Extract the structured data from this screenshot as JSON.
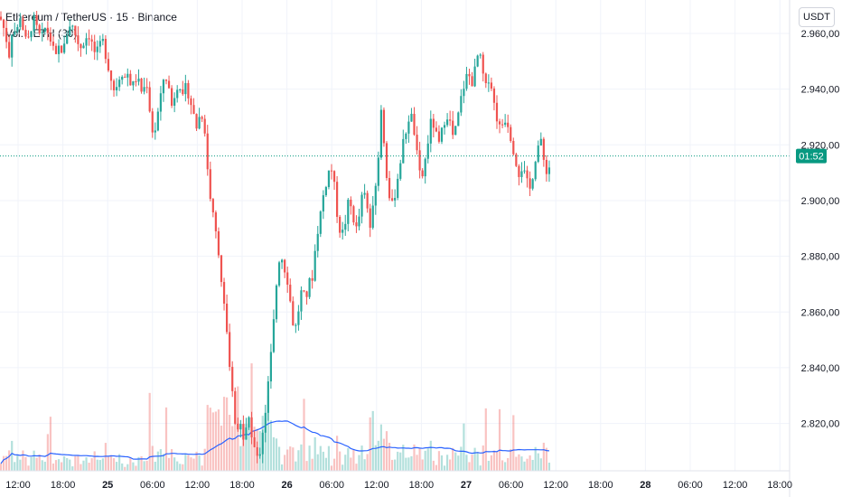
{
  "header": {
    "title": "Ethereum / TetherUS · 15 · Binance",
    "volume_label": "Vol. · ETH (30)"
  },
  "currency_button": "USDT",
  "price_badge": "01:52",
  "colors": {
    "up": "#26a69a",
    "down": "#ef5350",
    "volume_ma": "#2962ff",
    "last_price": "#089981",
    "grid": "#f0f3fa",
    "axis_text": "#131722"
  },
  "chart_data": {
    "type": "candlestick",
    "ylim": [
      2803,
      2972
    ],
    "y_ticks": [
      {
        "value": 2960,
        "label": "2.960,00"
      },
      {
        "value": 2940,
        "label": "2.940,00"
      },
      {
        "value": 2920,
        "label": "2.920,00"
      },
      {
        "value": 2900,
        "label": "2.900,00"
      },
      {
        "value": 2880,
        "label": "2.880,00"
      },
      {
        "value": 2860,
        "label": "2.860,00"
      },
      {
        "value": 2840,
        "label": "2.840,00"
      },
      {
        "value": 2820,
        "label": "2.820,00"
      }
    ],
    "x_ticks": [
      {
        "label": "12:00",
        "bold": false
      },
      {
        "label": "18:00",
        "bold": false
      },
      {
        "label": "25",
        "bold": true
      },
      {
        "label": "06:00",
        "bold": false
      },
      {
        "label": "12:00",
        "bold": false
      },
      {
        "label": "18:00",
        "bold": false
      },
      {
        "label": "26",
        "bold": true
      },
      {
        "label": "06:00",
        "bold": false
      },
      {
        "label": "12:00",
        "bold": false
      },
      {
        "label": "18:00",
        "bold": false
      },
      {
        "label": "27",
        "bold": true
      },
      {
        "label": "06:00",
        "bold": false
      },
      {
        "label": "12:00",
        "bold": false
      },
      {
        "label": "18:00",
        "bold": false
      },
      {
        "label": "28",
        "bold": true
      },
      {
        "label": "06:00",
        "bold": false
      },
      {
        "label": "12:00",
        "bold": false
      },
      {
        "label": "18:00",
        "bold": false
      }
    ],
    "last_price": 2916,
    "path": [
      [
        0,
        2966
      ],
      [
        6,
        2960
      ],
      [
        10,
        2952
      ],
      [
        14,
        2963
      ],
      [
        18,
        2959
      ],
      [
        22,
        2967
      ],
      [
        26,
        2961
      ],
      [
        30,
        2955
      ],
      [
        34,
        2962
      ],
      [
        38,
        2965
      ],
      [
        42,
        2960
      ],
      [
        46,
        2958
      ],
      [
        50,
        2962
      ],
      [
        54,
        2960
      ],
      [
        58,
        2955
      ],
      [
        62,
        2951
      ],
      [
        66,
        2956
      ],
      [
        70,
        2953
      ],
      [
        74,
        2960
      ],
      [
        78,
        2964
      ],
      [
        82,
        2961
      ],
      [
        86,
        2957
      ],
      [
        90,
        2955
      ],
      [
        94,
        2958
      ],
      [
        98,
        2960
      ],
      [
        102,
        2956
      ],
      [
        106,
        2952
      ],
      [
        110,
        2955
      ],
      [
        114,
        2957
      ],
      [
        118,
        2951
      ],
      [
        122,
        2945
      ],
      [
        126,
        2940
      ],
      [
        130,
        2942
      ],
      [
        134,
        2947
      ],
      [
        138,
        2944
      ],
      [
        142,
        2946
      ],
      [
        146,
        2940
      ],
      [
        150,
        2944
      ],
      [
        154,
        2942
      ],
      [
        158,
        2938
      ],
      [
        162,
        2944
      ],
      [
        166,
        2932
      ],
      [
        170,
        2922
      ],
      [
        174,
        2930
      ],
      [
        178,
        2937
      ],
      [
        182,
        2946
      ],
      [
        186,
        2942
      ],
      [
        190,
        2934
      ],
      [
        194,
        2939
      ],
      [
        198,
        2944
      ],
      [
        202,
        2936
      ],
      [
        206,
        2941
      ],
      [
        210,
        2937
      ],
      [
        214,
        2931
      ],
      [
        218,
        2926
      ],
      [
        222,
        2932
      ],
      [
        226,
        2929
      ],
      [
        230,
        2910
      ],
      [
        234,
        2898
      ],
      [
        238,
        2890
      ],
      [
        242,
        2882
      ],
      [
        246,
        2868
      ],
      [
        250,
        2856
      ],
      [
        254,
        2840
      ],
      [
        258,
        2828
      ],
      [
        262,
        2814
      ],
      [
        266,
        2820
      ],
      [
        270,
        2812
      ],
      [
        274,
        2824
      ],
      [
        278,
        2818
      ],
      [
        282,
        2810
      ],
      [
        286,
        2806
      ],
      [
        290,
        2816
      ],
      [
        294,
        2825
      ],
      [
        298,
        2838
      ],
      [
        302,
        2852
      ],
      [
        306,
        2870
      ],
      [
        310,
        2882
      ],
      [
        314,
        2877
      ],
      [
        318,
        2872
      ],
      [
        322,
        2862
      ],
      [
        326,
        2852
      ],
      [
        330,
        2860
      ],
      [
        334,
        2868
      ],
      [
        338,
        2864
      ],
      [
        342,
        2870
      ],
      [
        346,
        2873
      ],
      [
        350,
        2886
      ],
      [
        354,
        2894
      ],
      [
        358,
        2902
      ],
      [
        362,
        2908
      ],
      [
        366,
        2913
      ],
      [
        370,
        2905
      ],
      [
        374,
        2893
      ],
      [
        378,
        2887
      ],
      [
        382,
        2892
      ],
      [
        386,
        2900
      ],
      [
        390,
        2896
      ],
      [
        394,
        2889
      ],
      [
        398,
        2895
      ],
      [
        402,
        2904
      ],
      [
        406,
        2898
      ],
      [
        410,
        2890
      ],
      [
        414,
        2900
      ],
      [
        418,
        2912
      ],
      [
        422,
        2932
      ],
      [
        426,
        2918
      ],
      [
        430,
        2902
      ],
      [
        434,
        2898
      ],
      [
        438,
        2904
      ],
      [
        442,
        2912
      ],
      [
        446,
        2920
      ],
      [
        450,
        2926
      ],
      [
        454,
        2932
      ],
      [
        458,
        2926
      ],
      [
        462,
        2915
      ],
      [
        466,
        2906
      ],
      [
        470,
        2913
      ],
      [
        474,
        2922
      ],
      [
        478,
        2930
      ],
      [
        482,
        2924
      ],
      [
        486,
        2920
      ],
      [
        490,
        2926
      ],
      [
        494,
        2932
      ],
      [
        498,
        2928
      ],
      [
        502,
        2922
      ],
      [
        506,
        2928
      ],
      [
        510,
        2936
      ],
      [
        514,
        2942
      ],
      [
        518,
        2946
      ],
      [
        522,
        2942
      ],
      [
        526,
        2947
      ],
      [
        530,
        2954
      ],
      [
        534,
        2946
      ],
      [
        538,
        2940
      ],
      [
        542,
        2946
      ],
      [
        546,
        2936
      ],
      [
        550,
        2930
      ],
      [
        554,
        2925
      ],
      [
        558,
        2930
      ],
      [
        562,
        2928
      ],
      [
        566,
        2922
      ],
      [
        570,
        2916
      ],
      [
        574,
        2910
      ],
      [
        578,
        2912
      ],
      [
        582,
        2908
      ],
      [
        586,
        2903
      ],
      [
        590,
        2910
      ],
      [
        594,
        2918
      ],
      [
        598,
        2922
      ],
      [
        602,
        2914
      ],
      [
        606,
        2910
      ],
      [
        608,
        2912
      ]
    ]
  }
}
